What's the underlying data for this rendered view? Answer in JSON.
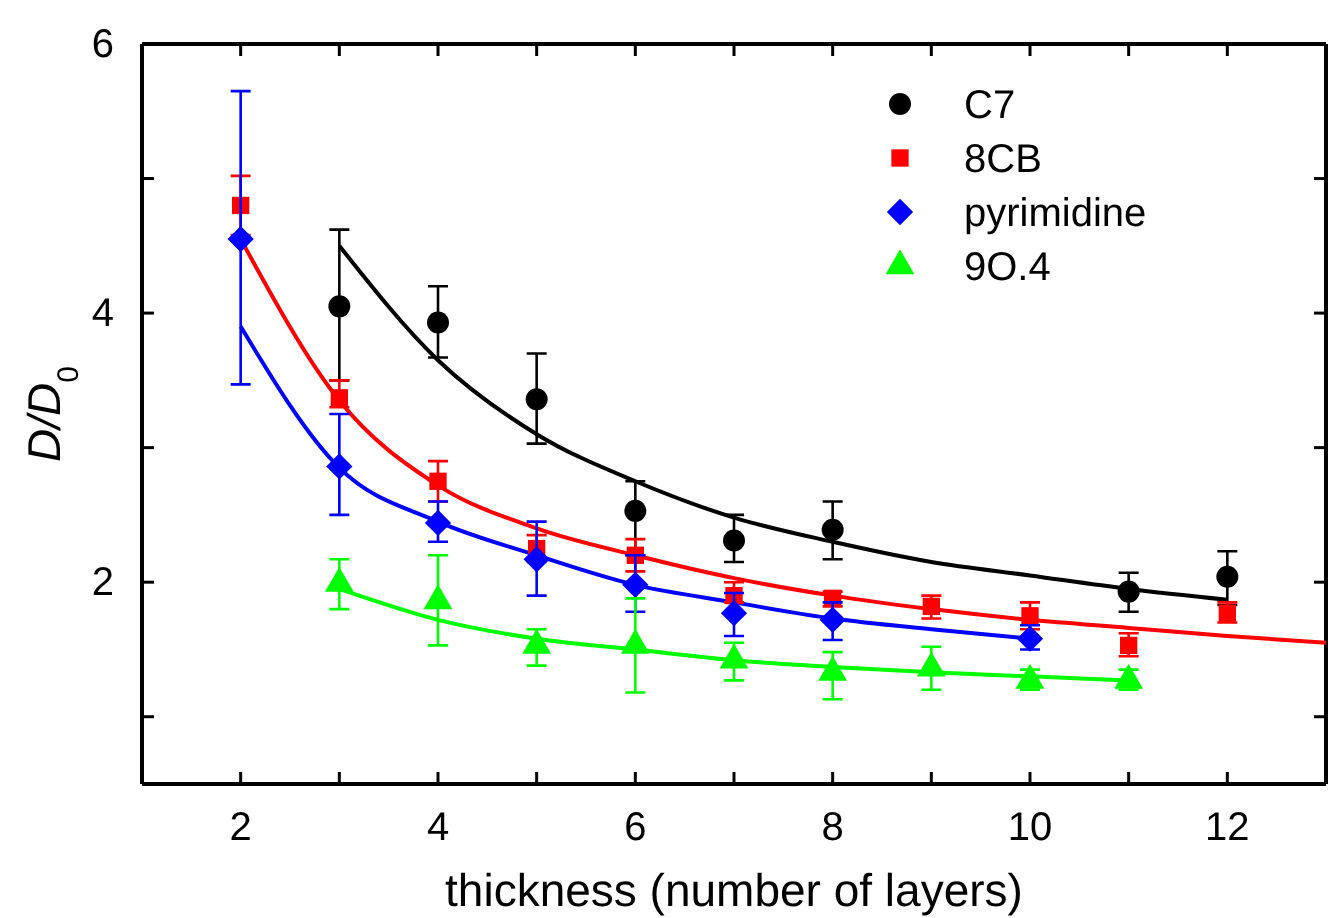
{
  "chart_data": {
    "type": "scatter",
    "xlabel": "thickness (number of layers)",
    "ylabel": "D/D$_{0}$",
    "xlim": [
      1,
      13
    ],
    "ylim": [
      0.5,
      6
    ],
    "xticks": [
      2,
      {
        "value": 3,
        "label": null
      },
      4,
      {
        "value": 5,
        "label": null
      },
      6,
      {
        "value": 7,
        "label": null
      },
      8,
      {
        "value": 9,
        "label": null
      },
      10,
      {
        "value": 11,
        "label": null
      },
      12
    ],
    "yticks": [
      {
        "value": 1,
        "label": null
      },
      2,
      {
        "value": 3,
        "label": null
      },
      4,
      {
        "value": 5,
        "label": null
      },
      6
    ],
    "legend": "top right",
    "grid": false,
    "series": [
      {
        "name": "C7",
        "color": "#000000",
        "marker": "circle",
        "x": [
          3,
          4,
          5,
          6,
          7,
          8,
          11,
          12
        ],
        "values": [
          4.05,
          3.93,
          3.36,
          2.53,
          2.31,
          2.39,
          1.93,
          2.04
        ],
        "errors": [
          [
            3.5,
            4.62
          ],
          [
            3.67,
            4.2
          ],
          [
            3.03,
            3.7
          ],
          [
            2.2,
            2.75
          ],
          [
            2.15,
            2.5
          ],
          [
            2.17,
            2.6
          ],
          [
            1.78,
            2.07
          ],
          [
            1.83,
            2.23
          ]
        ]
      },
      {
        "name": "8CB",
        "color": "#ff0000",
        "marker": "square",
        "x": [
          2,
          3,
          4,
          5,
          6,
          7,
          8,
          9,
          10,
          11,
          12
        ],
        "values": [
          4.8,
          3.37,
          2.75,
          2.25,
          2.2,
          1.9,
          1.88,
          1.82,
          1.75,
          1.53,
          1.77
        ],
        "errors": [
          [
            4.58,
            5.02
          ],
          [
            3.3,
            3.5
          ],
          [
            2.6,
            2.9
          ],
          [
            2.15,
            2.35
          ],
          [
            2.08,
            2.32
          ],
          [
            1.85,
            2.0
          ],
          [
            1.82,
            1.93
          ],
          [
            1.73,
            1.9
          ],
          [
            1.65,
            1.85
          ],
          [
            1.45,
            1.62
          ],
          [
            1.7,
            1.85
          ]
        ]
      },
      {
        "name": "pyrimidine",
        "color": "#0000ff",
        "marker": "diamond",
        "x": [
          2,
          3,
          4,
          5,
          6,
          7,
          8,
          10
        ],
        "values": [
          4.55,
          2.86,
          2.44,
          2.17,
          1.98,
          1.77,
          1.72,
          1.58
        ],
        "errors": [
          [
            3.47,
            5.65
          ],
          [
            2.5,
            3.25
          ],
          [
            2.3,
            2.6
          ],
          [
            1.9,
            2.45
          ],
          [
            1.78,
            2.2
          ],
          [
            1.6,
            1.92
          ],
          [
            1.57,
            1.85
          ],
          [
            1.5,
            1.68
          ]
        ]
      },
      {
        "name": "9O.4",
        "color": "#00ff00",
        "marker": "triangle",
        "x": [
          3,
          4,
          5,
          6,
          7,
          8,
          9,
          10,
          11
        ],
        "values": [
          1.99,
          1.86,
          1.53,
          1.53,
          1.42,
          1.33,
          1.36,
          1.27,
          1.27
        ],
        "errors": [
          [
            1.8,
            2.17
          ],
          [
            1.53,
            2.2
          ],
          [
            1.38,
            1.65
          ],
          [
            1.18,
            1.88
          ],
          [
            1.27,
            1.55
          ],
          [
            1.13,
            1.48
          ],
          [
            1.2,
            1.52
          ],
          [
            1.2,
            1.35
          ],
          [
            1.2,
            1.35
          ]
        ]
      },
      {
        "type": "line",
        "color": "#000000",
        "marker": "none",
        "x": [
          3,
          4,
          5,
          6,
          7,
          8,
          9,
          10,
          11,
          12
        ],
        "values": [
          4.5,
          3.65,
          3.1,
          2.75,
          2.48,
          2.3,
          2.15,
          2.05,
          1.95,
          1.87
        ]
      },
      {
        "type": "line",
        "color": "#ff0000",
        "marker": "none",
        "x": [
          2,
          3,
          4,
          5,
          6,
          7,
          8,
          9,
          10,
          11,
          12,
          13
        ],
        "values": [
          4.55,
          3.35,
          2.72,
          2.4,
          2.2,
          2.03,
          1.9,
          1.8,
          1.72,
          1.66,
          1.6,
          1.55
        ]
      },
      {
        "type": "line",
        "color": "#0000ff",
        "marker": "none",
        "x": [
          2,
          3,
          4,
          5,
          6,
          7,
          8,
          9,
          10
        ],
        "values": [
          3.9,
          2.85,
          2.45,
          2.2,
          1.98,
          1.85,
          1.73,
          1.65,
          1.58
        ]
      },
      {
        "type": "line",
        "color": "#00ff00",
        "marker": "none",
        "x": [
          3,
          4,
          5,
          6,
          7,
          8,
          9,
          10,
          11
        ],
        "values": [
          1.95,
          1.72,
          1.58,
          1.5,
          1.42,
          1.37,
          1.33,
          1.3,
          1.27
        ]
      }
    ]
  }
}
